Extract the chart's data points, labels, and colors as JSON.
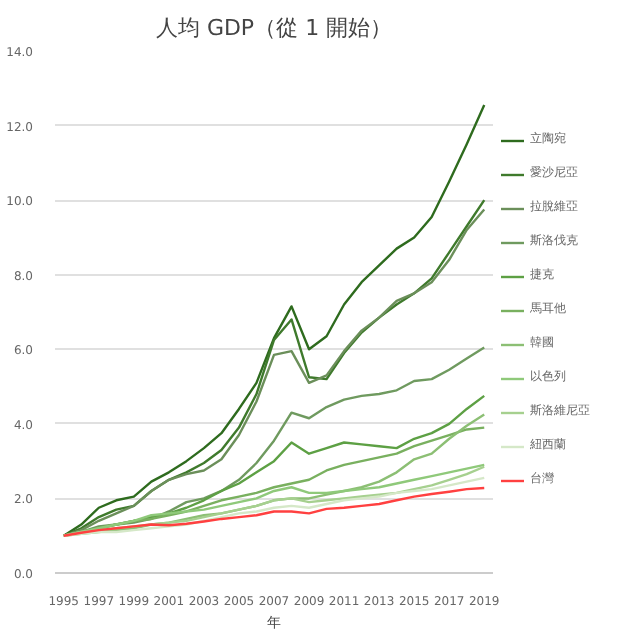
{
  "chart_data": {
    "type": "line",
    "title": "人均 GDP（從 1 開始）",
    "xlabel": "年",
    "x": [
      1995,
      1996,
      1997,
      1998,
      1999,
      2000,
      2001,
      2002,
      2003,
      2004,
      2005,
      2006,
      2007,
      2008,
      2009,
      2010,
      2011,
      2012,
      2013,
      2014,
      2015,
      2016,
      2017,
      2018,
      2019
    ],
    "xlim": [
      1994.5,
      2019.5
    ],
    "xticks": [
      1995,
      1997,
      1999,
      2001,
      2003,
      2005,
      2007,
      2009,
      2011,
      2013,
      2015,
      2017,
      2019
    ],
    "ylim": [
      0,
      14
    ],
    "yticks": [
      {
        "value": 0,
        "label": "0.0"
      },
      {
        "value": 2,
        "label": "2.0"
      },
      {
        "value": 4,
        "label": "4.0"
      },
      {
        "value": 6,
        "label": "6.0"
      },
      {
        "value": 8,
        "label": "8.0"
      },
      {
        "value": 10,
        "label": "10.0"
      },
      {
        "value": 12,
        "label": "12.0"
      },
      {
        "value": 14,
        "label": "14.0"
      }
    ],
    "grid": "y",
    "legend": "right",
    "marker": "none",
    "line_style": "solid",
    "series": [
      {
        "name": "立陶宛",
        "color": "#2e6b1e",
        "values": [
          1.0,
          1.3,
          1.75,
          1.95,
          2.05,
          2.45,
          2.7,
          3.0,
          3.35,
          3.75,
          4.4,
          5.1,
          6.3,
          7.15,
          6.0,
          6.35,
          7.2,
          7.8,
          8.25,
          8.7,
          9.0,
          9.55,
          10.5,
          11.5,
          12.55
        ]
      },
      {
        "name": "愛沙尼亞",
        "color": "#3f7a2c",
        "values": [
          1.0,
          1.2,
          1.5,
          1.7,
          1.8,
          2.2,
          2.5,
          2.7,
          2.95,
          3.3,
          3.9,
          4.8,
          6.25,
          6.8,
          5.25,
          5.2,
          5.9,
          6.45,
          6.85,
          7.2,
          7.5,
          7.9,
          8.6,
          9.3,
          10.0
        ]
      },
      {
        "name": "拉脫維亞",
        "color": "#6b8f5a",
        "values": [
          1.0,
          1.15,
          1.4,
          1.6,
          1.8,
          2.2,
          2.5,
          2.65,
          2.75,
          3.05,
          3.7,
          4.6,
          5.85,
          5.95,
          5.1,
          5.3,
          5.95,
          6.5,
          6.85,
          7.3,
          7.5,
          7.8,
          8.4,
          9.2,
          9.75
        ]
      },
      {
        "name": "斯洛伐克",
        "color": "#6f9a5f",
        "values": [
          1.0,
          1.1,
          1.25,
          1.3,
          1.35,
          1.45,
          1.65,
          1.9,
          2.0,
          2.2,
          2.5,
          2.95,
          3.55,
          4.3,
          4.15,
          4.45,
          4.65,
          4.75,
          4.8,
          4.9,
          5.15,
          5.2,
          5.45,
          5.75,
          6.05
        ]
      },
      {
        "name": "捷克",
        "color": "#5da044",
        "values": [
          1.0,
          1.1,
          1.2,
          1.3,
          1.4,
          1.5,
          1.6,
          1.75,
          1.95,
          2.2,
          2.4,
          2.7,
          3.0,
          3.5,
          3.2,
          3.35,
          3.5,
          3.45,
          3.4,
          3.35,
          3.6,
          3.75,
          4.0,
          4.4,
          4.75
        ]
      },
      {
        "name": "馬耳他",
        "color": "#79b05f",
        "values": [
          1.0,
          1.1,
          1.2,
          1.3,
          1.4,
          1.45,
          1.55,
          1.65,
          1.8,
          1.95,
          2.05,
          2.15,
          2.3,
          2.4,
          2.5,
          2.75,
          2.9,
          3.0,
          3.1,
          3.2,
          3.4,
          3.55,
          3.7,
          3.85,
          3.9
        ]
      },
      {
        "name": "韓國",
        "color": "#8cbf74",
        "values": [
          1.0,
          1.05,
          1.1,
          1.15,
          1.2,
          1.3,
          1.35,
          1.45,
          1.55,
          1.6,
          1.7,
          1.8,
          1.95,
          2.0,
          2.0,
          2.1,
          2.2,
          2.3,
          2.45,
          2.7,
          3.05,
          3.2,
          3.6,
          3.95,
          4.25
        ]
      },
      {
        "name": "以色列",
        "color": "#8fc97a",
        "values": [
          1.0,
          1.1,
          1.2,
          1.3,
          1.4,
          1.55,
          1.6,
          1.65,
          1.7,
          1.8,
          1.9,
          2.0,
          2.2,
          2.3,
          2.15,
          2.15,
          2.2,
          2.25,
          2.3,
          2.4,
          2.5,
          2.6,
          2.7,
          2.8,
          2.9
        ]
      },
      {
        "name": "斯洛維尼亞",
        "color": "#a6d08f",
        "values": [
          1.0,
          1.1,
          1.15,
          1.2,
          1.25,
          1.3,
          1.35,
          1.4,
          1.5,
          1.6,
          1.7,
          1.8,
          1.95,
          2.0,
          1.9,
          1.95,
          2.0,
          2.05,
          2.1,
          2.15,
          2.25,
          2.35,
          2.5,
          2.65,
          2.85
        ]
      },
      {
        "name": "紐西蘭",
        "color": "#d5e8c8",
        "values": [
          1.0,
          1.05,
          1.1,
          1.1,
          1.15,
          1.2,
          1.25,
          1.3,
          1.4,
          1.5,
          1.6,
          1.65,
          1.75,
          1.8,
          1.75,
          1.85,
          1.95,
          2.0,
          2.05,
          2.15,
          2.2,
          2.25,
          2.35,
          2.45,
          2.55
        ]
      },
      {
        "name": "台灣",
        "color": "#ff4040",
        "values": [
          1.0,
          1.08,
          1.15,
          1.2,
          1.25,
          1.3,
          1.28,
          1.32,
          1.38,
          1.45,
          1.5,
          1.55,
          1.65,
          1.65,
          1.6,
          1.72,
          1.75,
          1.8,
          1.85,
          1.95,
          2.05,
          2.12,
          2.18,
          2.25,
          2.28
        ]
      }
    ]
  }
}
